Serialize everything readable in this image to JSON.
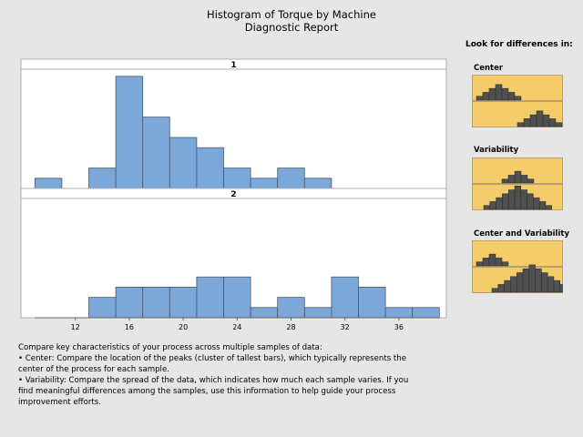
{
  "header": {
    "title": "Histogram of Torque by Machine",
    "subtitle": "Diagnostic Report"
  },
  "chart_data": {
    "type": "bar",
    "title": "Histogram of Torque by Machine",
    "bin_edges": [
      9,
      11,
      13,
      15,
      17,
      19,
      21,
      23,
      25,
      27,
      29,
      31,
      33,
      35,
      37,
      39
    ],
    "xlim": [
      9,
      39
    ],
    "xticks": [
      12,
      16,
      20,
      24,
      28,
      32,
      36
    ],
    "ylim": [
      0,
      11.7
    ],
    "grid": false,
    "panels": [
      {
        "label": "1",
        "counts": [
          1,
          0,
          2,
          11,
          7,
          5,
          4,
          2,
          1,
          2,
          1,
          0,
          0,
          0,
          0
        ]
      },
      {
        "label": "2",
        "counts": [
          0,
          0,
          2,
          3,
          3,
          3,
          4,
          4,
          1,
          2,
          1,
          4,
          3,
          1,
          1
        ]
      }
    ],
    "bar_color": "#7ba7d9"
  },
  "sidebar": {
    "heading": "Look for differences in:",
    "thumbs": [
      {
        "label": "Center"
      },
      {
        "label": "Variability"
      },
      {
        "label": "Center and Variability"
      }
    ]
  },
  "description": {
    "intro": "Compare key characteristics of your process across multiple samples of data:",
    "bullet1": "•  Center: Compare the location of the peaks (cluster of tallest bars), which typically represents the center of the process for each sample.",
    "bullet2": "•  Variability: Compare the spread of the data, which indicates how much each sample varies. If you find meaningful differences among the samples, use this information to help guide your process improvement efforts."
  }
}
